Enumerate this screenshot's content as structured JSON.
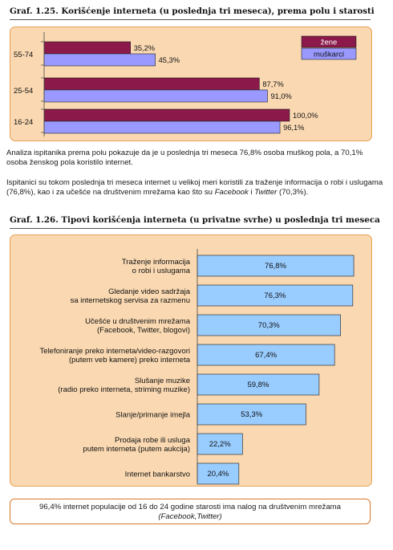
{
  "figure1": {
    "title": "Graf. 1.25. Korišćenje interneta (u poslednja tri meseca), prema polu i starosti"
  },
  "figure2": {
    "title": "Graf. 1.26. Tipovi korišćenja interneta (u privatne svrhe) u poslednja tri meseca"
  },
  "paragraph1": "Analiza ispitanika prema polu pokazuje da je u poslednja tri meseca 76,8% osoba muškog pola, a 70,1% osoba ženskog pola koristilo internet.",
  "paragraph2": {
    "before": "Ispitanici su tokom poslednja tri meseca internet u velikoj meri koristili za traženje informacija o robi i uslugama (76,8%), kao i za učešće na društvenim mrežama kao što su ",
    "fb": "Facebook",
    "mid": " i ",
    "tw": "Twitter",
    "after": " (70,3%)."
  },
  "note": {
    "line1": "96,4% internet populacije od 16 do 24 godine starosti ima nalog na društvenim mrežama",
    "line2": "(Facebook,Twitter)"
  },
  "colors": {
    "zene": "#8b1a4a",
    "muskarci": "#9999ff",
    "bar2": "#99ccff",
    "panel": "#fad9b2",
    "panel_border": "#e6a156"
  },
  "chart_data": [
    {
      "type": "bar",
      "orientation": "horizontal",
      "categories": [
        "55-74",
        "25-54",
        "16-24"
      ],
      "series": [
        {
          "name": "žene",
          "values": [
            35.2,
            87.7,
            100.0
          ],
          "labels": [
            "35,2%",
            "87,7%",
            "100,0%"
          ]
        },
        {
          "name": "muškarci",
          "values": [
            45.3,
            91.0,
            96.1
          ],
          "labels": [
            "45,3%",
            "91,0%",
            "96,1%"
          ]
        }
      ],
      "xlim": [
        0,
        100
      ],
      "legend": "top-right",
      "grid": false
    },
    {
      "type": "bar",
      "orientation": "horizontal",
      "categories": [
        [
          "Traženje informacija",
          "o robi i uslugama"
        ],
        [
          "Gledanje video sadržaja",
          "sa internetskog servisa za razmenu"
        ],
        [
          "Učešće u društvenim mrežama",
          "(Facebook, Twitter, blogovi)"
        ],
        [
          "Telefoniranje preko interneta/video-razgovori",
          "(putem veb kamere) preko interneta"
        ],
        [
          "Slušanje muzike",
          "(radio preko interneta, striming muzike)"
        ],
        [
          "Slanje/primanje imejla"
        ],
        [
          "Prodaja robe ili usluga",
          "putem interneta (putem aukcija)"
        ],
        [
          "Internet bankarstvo"
        ]
      ],
      "values": [
        76.8,
        76.3,
        70.3,
        67.4,
        59.8,
        53.3,
        22.2,
        20.4
      ],
      "labels": [
        "76,8%",
        "76,3%",
        "70,3%",
        "67,4%",
        "59,8%",
        "53,3%",
        "22,2%",
        "20,4%"
      ],
      "xlim": [
        0,
        100
      ],
      "grid": false
    }
  ]
}
